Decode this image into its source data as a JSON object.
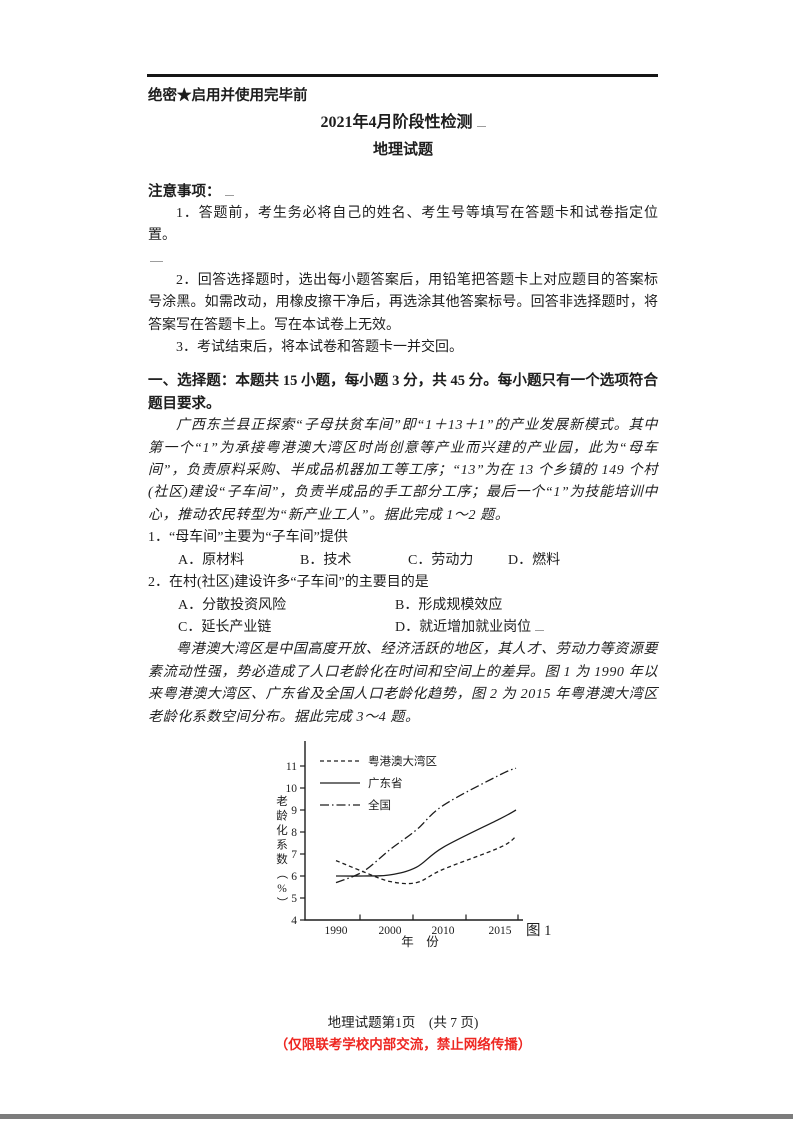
{
  "header": {
    "secrecy": "绝密★启用并使用完毕前",
    "title": "2021年4月阶段性检测",
    "subtitle": "地理试题"
  },
  "notes": {
    "heading": "注意事项：",
    "item1": "1．答题前，考生务必将自己的姓名、考生号等填写在答题卡和试卷指定位置。",
    "item2": "2．回答选择题时，选出每小题答案后，用铅笔把答题卡上对应题目的答案标号涂黑。如需改动，用橡皮擦干净后，再选涂其他答案标号。回答非选择题时，将答案写在答题卡上。写在本试卷上无效。",
    "item3": "3．考试结束后，将本试卷和答题卡一并交回。"
  },
  "section": {
    "heading": "一、选择题：本题共 15 小题，每小题 3 分，共 45 分。每小题只有一个选项符合题目要求。"
  },
  "passage1": "广西东兰县正探索“子母扶贫车间”即“1＋13＋1”的产业发展新模式。其中第一个“1”为承接粤港澳大湾区时尚创意等产业而兴建的产业园，此为“母车间”，负责原料采购、半成品机器加工等工序；“13”为在 13 个乡镇的 149 个村(社区)建设“子车间”，负责半成品的手工部分工序；最后一个“1”为技能培训中心，推动农民转型为“新产业工人”。据此完成 1～2 题。",
  "question1": {
    "stem": "1．“母车间”主要为“子车间”提供",
    "options": [
      "A．原材料",
      "B．技术",
      "C．劳动力",
      "D．燃料"
    ]
  },
  "question2": {
    "stem": "2．在村(社区)建设许多“子车间”的主要目的是",
    "options": [
      "A．分散投资风险",
      "B．形成规模效应",
      "C．延长产业链",
      "D．就近增加就业岗位"
    ]
  },
  "passage2": "粤港澳大湾区是中国高度开放、经济活跃的地区，其人才、劳动力等资源要素流动性强，势必造成了人口老龄化在时间和空间上的差异。图 1 为 1990 年以来粤港澳大湾区、广东省及全国人口老龄化趋势，图 2 为 2015 年粤港澳大湾区老龄化系数空间分布。据此完成 3～4 题。",
  "chart_data": {
    "type": "line",
    "caption": "图 1",
    "xlabel": "年　份",
    "ylabel": "老龄化系数（%）",
    "x": [
      1990,
      1995,
      2000,
      2005,
      2010,
      2015,
      2017
    ],
    "x_tick_labels": [
      "1990",
      "2000",
      "2010",
      "2015"
    ],
    "y_ticks": [
      4,
      5,
      6,
      7,
      8,
      9,
      10,
      11
    ],
    "ylim": [
      4,
      11.5
    ],
    "grid": false,
    "legend_position": "top-left",
    "series": [
      {
        "name": "粤港澳大湾区",
        "line_style": "dashed",
        "values": [
          6.7,
          6.2,
          5.75,
          5.7,
          6.3,
          7.3,
          7.8
        ]
      },
      {
        "name": "广东省",
        "line_style": "solid",
        "values": [
          6.0,
          6.0,
          6.05,
          6.4,
          7.3,
          8.6,
          9.0
        ]
      },
      {
        "name": "全国",
        "line_style": "dash-dot",
        "values": [
          5.7,
          6.2,
          7.2,
          8.1,
          9.2,
          10.6,
          10.9
        ]
      }
    ]
  },
  "footer": {
    "page_info": "地理试题第1页　(共 7 页)",
    "restriction": "（仅限联考学校内部交流，禁止网络传播）"
  },
  "colors": {
    "ink": "#1d1d1d",
    "restriction_red": "#ee2722",
    "rule_black": "#161616",
    "page_edge_gray": "#7c7c7c"
  }
}
